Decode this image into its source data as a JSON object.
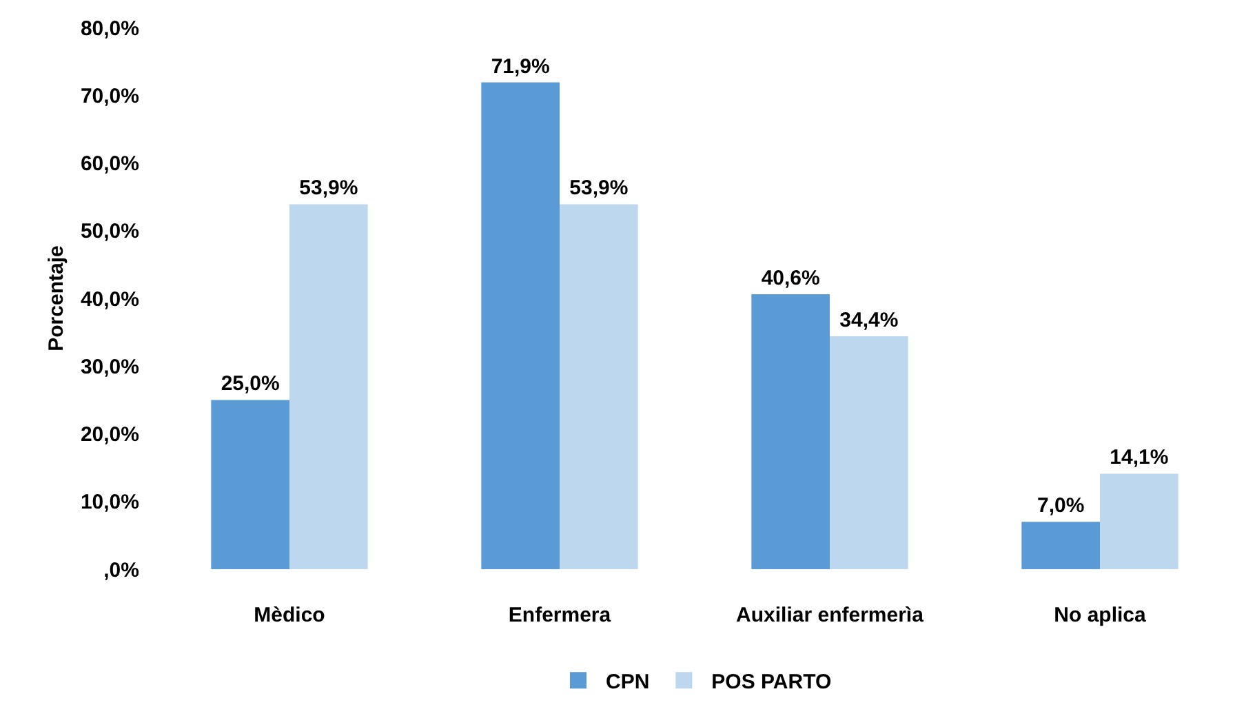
{
  "chart_data": {
    "type": "bar",
    "ylabel": "Porcentaje",
    "categories": [
      "Mèdico",
      "Enfermera",
      "Auxiliar enfermerìa",
      "No aplica"
    ],
    "series": [
      {
        "name": "CPN",
        "color": "#5b9bd5",
        "values": [
          25.0,
          71.9,
          40.6,
          7.0
        ],
        "value_labels": [
          "25,0%",
          "71,9%",
          "40,6%",
          "7,0%"
        ]
      },
      {
        "name": "POS PARTO",
        "color": "#bdd7ee",
        "values": [
          53.9,
          53.9,
          34.4,
          14.1
        ],
        "value_labels": [
          "53,9%",
          "53,9%",
          "34,4%",
          "14,1%"
        ]
      }
    ],
    "ylim": [
      0,
      80
    ],
    "yticks": [
      {
        "value": 0,
        "label": ",0%"
      },
      {
        "value": 10,
        "label": "10,0%"
      },
      {
        "value": 20,
        "label": "20,0%"
      },
      {
        "value": 30,
        "label": "30,0%"
      },
      {
        "value": 40,
        "label": "40,0%"
      },
      {
        "value": 50,
        "label": "50,0%"
      },
      {
        "value": 60,
        "label": "60,0%"
      },
      {
        "value": 70,
        "label": "70,0%"
      },
      {
        "value": 80,
        "label": "80,0%"
      }
    ],
    "grid": false,
    "legend": "bottom"
  }
}
